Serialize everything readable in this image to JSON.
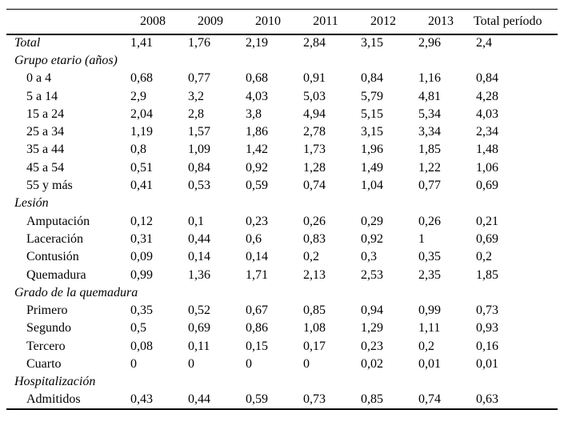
{
  "page": {
    "background_color": "#ffffff",
    "text_color": "#000000",
    "rule_color": "#000000"
  },
  "table": {
    "columns": [
      "",
      "2008",
      "2009",
      "2010",
      "2011",
      "2012",
      "2013",
      "Total período"
    ],
    "rows": [
      {
        "label": "Total",
        "italic": true,
        "indent": false,
        "values": [
          "1,41",
          "1,76",
          "2,19",
          "2,84",
          "3,15",
          "2,96",
          "2,4"
        ]
      },
      {
        "label": "Grupo etario (años)",
        "italic": true,
        "indent": false,
        "values": []
      },
      {
        "label": "0 a 4",
        "italic": false,
        "indent": true,
        "values": [
          "0,68",
          "0,77",
          "0,68",
          "0,91",
          "0,84",
          "1,16",
          "0,84"
        ]
      },
      {
        "label": "5 a 14",
        "italic": false,
        "indent": true,
        "values": [
          "2,9",
          "3,2",
          "4,03",
          "5,03",
          "5,79",
          "4,81",
          "4,28"
        ]
      },
      {
        "label": "15 a 24",
        "italic": false,
        "indent": true,
        "values": [
          "2,04",
          "2,8",
          "3,8",
          "4,94",
          "5,15",
          "5,34",
          "4,03"
        ]
      },
      {
        "label": "25 a 34",
        "italic": false,
        "indent": true,
        "values": [
          "1,19",
          "1,57",
          "1,86",
          "2,78",
          "3,15",
          "3,34",
          "2,34"
        ]
      },
      {
        "label": "35 a 44",
        "italic": false,
        "indent": true,
        "values": [
          "0,8",
          "1,09",
          "1,42",
          "1,73",
          "1,96",
          "1,85",
          "1,48"
        ]
      },
      {
        "label": "45 a 54",
        "italic": false,
        "indent": true,
        "values": [
          "0,51",
          "0,84",
          "0,92",
          "1,28",
          "1,49",
          "1,22",
          "1,06"
        ]
      },
      {
        "label": "55 y más",
        "italic": false,
        "indent": true,
        "values": [
          "0,41",
          "0,53",
          "0,59",
          "0,74",
          "1,04",
          "0,77",
          "0,69"
        ]
      },
      {
        "label": "Lesión",
        "italic": true,
        "indent": false,
        "values": []
      },
      {
        "label": "Amputación",
        "italic": false,
        "indent": true,
        "values": [
          "0,12",
          "0,1",
          "0,23",
          "0,26",
          "0,29",
          "0,26",
          "0,21"
        ]
      },
      {
        "label": "Laceración",
        "italic": false,
        "indent": true,
        "values": [
          "0,31",
          "0,44",
          "0,6",
          "0,83",
          "0,92",
          "1",
          "0,69"
        ]
      },
      {
        "label": "Contusión",
        "italic": false,
        "indent": true,
        "values": [
          "0,09",
          "0,14",
          "0,14",
          "0,2",
          "0,3",
          "0,35",
          "0,2"
        ]
      },
      {
        "label": "Quemadura",
        "italic": false,
        "indent": true,
        "values": [
          "0,99",
          "1,36",
          "1,71",
          "2,13",
          "2,53",
          "2,35",
          "1,85"
        ]
      },
      {
        "label": "Grado de la quemadura",
        "italic": true,
        "indent": false,
        "values": []
      },
      {
        "label": "Primero",
        "italic": false,
        "indent": true,
        "values": [
          "0,35",
          "0,52",
          "0,67",
          "0,85",
          "0,94",
          "0,99",
          "0,73"
        ]
      },
      {
        "label": "Segundo",
        "italic": false,
        "indent": true,
        "values": [
          "0,5",
          "0,69",
          "0,86",
          "1,08",
          "1,29",
          "1,11",
          "0,93"
        ]
      },
      {
        "label": "Tercero",
        "italic": false,
        "indent": true,
        "values": [
          "0,08",
          "0,11",
          "0,15",
          "0,17",
          "0,23",
          "0,2",
          "0,16"
        ]
      },
      {
        "label": "Cuarto",
        "italic": false,
        "indent": true,
        "values": [
          "0",
          "0",
          "0",
          "0",
          "0,02",
          "0,01",
          "0,01"
        ]
      },
      {
        "label": "Hospitalización",
        "italic": true,
        "indent": false,
        "values": []
      },
      {
        "label": "Admitidos",
        "italic": false,
        "indent": true,
        "values": [
          "0,43",
          "0,44",
          "0,59",
          "0,73",
          "0,85",
          "0,74",
          "0,63"
        ]
      }
    ]
  }
}
